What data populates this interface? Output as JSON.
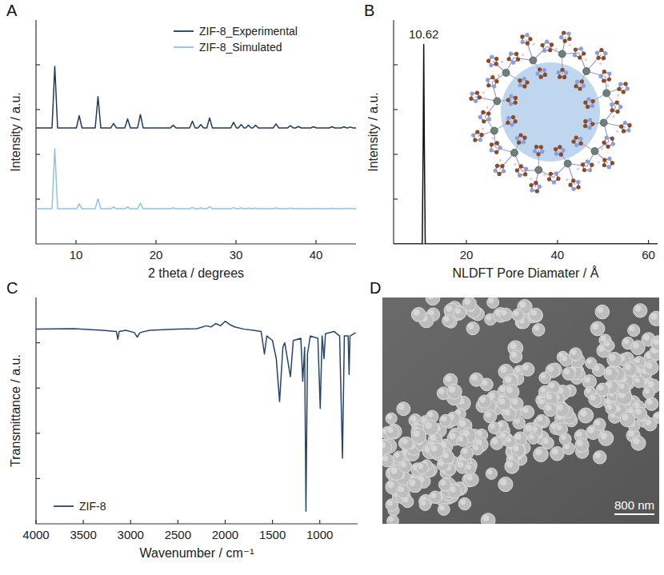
{
  "chart_data": [
    {
      "type": "line",
      "panel": "A",
      "xlabel": "2 theta / degrees",
      "ylabel": "Intensity / a.u.",
      "x": [
        5,
        7.0,
        7.35,
        7.7,
        10.05,
        10.4,
        10.75,
        12.4,
        12.75,
        13.1,
        14.35,
        14.7,
        15.05,
        16.1,
        16.45,
        16.8,
        17.7,
        18.05,
        18.4,
        21.8,
        22.15,
        22.5,
        24.2,
        24.55,
        24.9,
        25.25,
        25.6,
        25.95,
        26.35,
        26.7,
        27.05,
        29.35,
        29.7,
        30.05,
        30.3,
        30.65,
        31.0,
        31.2,
        31.55,
        31.9,
        32.1,
        32.45,
        32.8,
        34.65,
        35.0,
        35.35,
        36.45,
        36.8,
        37.15,
        37.45,
        37.8,
        38.15,
        39.35,
        39.7,
        40.05,
        41.65,
        42.0,
        42.35,
        43.15,
        43.5,
        43.85,
        43.95,
        44.3,
        44.65,
        45
      ],
      "series": [
        {
          "name": "ZIF-8_Experimental",
          "color": "#1f3a5f",
          "values": [
            5.18,
            5.18,
            7.93,
            5.18,
            5.18,
            5.73,
            5.18,
            5.18,
            6.58,
            5.18,
            5.18,
            5.38,
            5.18,
            5.18,
            5.58,
            5.18,
            5.18,
            5.78,
            5.18,
            5.18,
            5.3,
            5.18,
            5.18,
            5.48,
            5.18,
            5.18,
            5.33,
            5.18,
            5.18,
            5.63,
            5.18,
            5.18,
            5.43,
            5.18,
            5.18,
            5.33,
            5.18,
            5.18,
            5.3,
            5.18,
            5.18,
            5.3,
            5.18,
            5.18,
            5.36,
            5.18,
            5.18,
            5.28,
            5.18,
            5.18,
            5.24,
            5.18,
            5.18,
            5.23,
            5.18,
            5.18,
            5.23,
            5.18,
            5.18,
            5.23,
            5.18,
            5.18,
            5.22,
            5.18,
            5.18
          ]
        },
        {
          "name": "ZIF-8_Simulated",
          "color": "#8fc4e8",
          "values": [
            1.57,
            1.57,
            4.25,
            1.57,
            1.57,
            1.79,
            1.57,
            1.57,
            2.02,
            1.57,
            1.57,
            1.65,
            1.57,
            1.57,
            1.65,
            1.57,
            1.57,
            1.82,
            1.57,
            1.57,
            1.61,
            1.57,
            1.57,
            1.63,
            1.57,
            1.57,
            1.61,
            1.57,
            1.57,
            1.67,
            1.57,
            1.57,
            1.62,
            1.57,
            1.57,
            1.61,
            1.57,
            1.57,
            1.6,
            1.57,
            1.57,
            1.6,
            1.57,
            1.57,
            1.61,
            1.57,
            1.57,
            1.6,
            1.57,
            1.57,
            1.59,
            1.57,
            1.57,
            1.59,
            1.57,
            1.57,
            1.59,
            1.57,
            1.57,
            1.59,
            1.57,
            1.57,
            1.59,
            1.57,
            1.57
          ]
        }
      ],
      "xlim": [
        5,
        45
      ],
      "xticks": [
        10,
        20,
        30,
        40
      ],
      "ylim": [
        0,
        10
      ],
      "yticks": [
        2,
        4,
        6,
        8
      ],
      "tick_labels": "x",
      "grid": false,
      "legend": "top"
    },
    {
      "type": "line",
      "panel": "B",
      "xlabel": "NLDFT Pore Diamater / Å",
      "ylabel": "Intensity / a.u.",
      "x": [
        4,
        10.3,
        10.5,
        10.62,
        10.75,
        10.95,
        62
      ],
      "series": [
        {
          "color": "#111111",
          "values": [
            0,
            0,
            4.5,
            8.9,
            4.5,
            0,
            0
          ]
        }
      ],
      "annotations": [
        {
          "text": "10.62",
          "x": 10.62,
          "y": 8.9
        }
      ],
      "xlim": [
        4,
        62
      ],
      "xticks": [
        20,
        40,
        60
      ],
      "ylim": [
        0,
        10
      ],
      "yticks": [
        2,
        4,
        6,
        8
      ],
      "tick_labels": "x",
      "grid": false
    },
    {
      "type": "line",
      "panel": "C",
      "xlabel": "Wavenumber / cm⁻¹",
      "ylabel": "Transmittance / a.u.",
      "x": [
        4000,
        3600,
        3300,
        3150,
        3135,
        3120,
        3050,
        2960,
        2930,
        2900,
        2800,
        2500,
        2300,
        2200,
        2150,
        2100,
        2050,
        2000,
        1950,
        1900,
        1800,
        1700,
        1620,
        1585,
        1560,
        1500,
        1460,
        1425,
        1390,
        1370,
        1310,
        1280,
        1200,
        1180,
        1160,
        1146,
        1130,
        1100,
        1020,
        995,
        975,
        955,
        940,
        850,
        790,
        760,
        740,
        700,
        690,
        680,
        640,
        620
      ],
      "series": [
        {
          "name": "ZIF-8",
          "color": "#24466e",
          "values": [
            8.6,
            8.62,
            8.55,
            8.5,
            8.15,
            8.5,
            8.55,
            8.45,
            8.25,
            8.45,
            8.55,
            8.6,
            8.62,
            8.75,
            8.7,
            8.85,
            8.75,
            8.95,
            8.8,
            8.7,
            8.6,
            8.55,
            8.5,
            7.5,
            8.3,
            8.1,
            7.3,
            5.4,
            7.8,
            8.0,
            6.5,
            8.1,
            8.2,
            6.3,
            7.8,
            0.56,
            7.5,
            8.3,
            8.2,
            5.1,
            8.3,
            7.3,
            8.4,
            8.5,
            8.3,
            2.9,
            8.3,
            8.3,
            6.6,
            8.3,
            8.4,
            8.45
          ]
        }
      ],
      "xlim": [
        4000,
        600
      ],
      "xticks": [
        4000,
        3500,
        3000,
        2500,
        2000,
        1500,
        1000
      ],
      "ylim": [
        0,
        10
      ],
      "yticks": [
        2,
        4,
        6,
        8
      ],
      "tick_labels": "x",
      "grid": false,
      "legend": "lower left"
    }
  ],
  "image": {
    "panel": "D",
    "scale_bar": "800 nm"
  }
}
